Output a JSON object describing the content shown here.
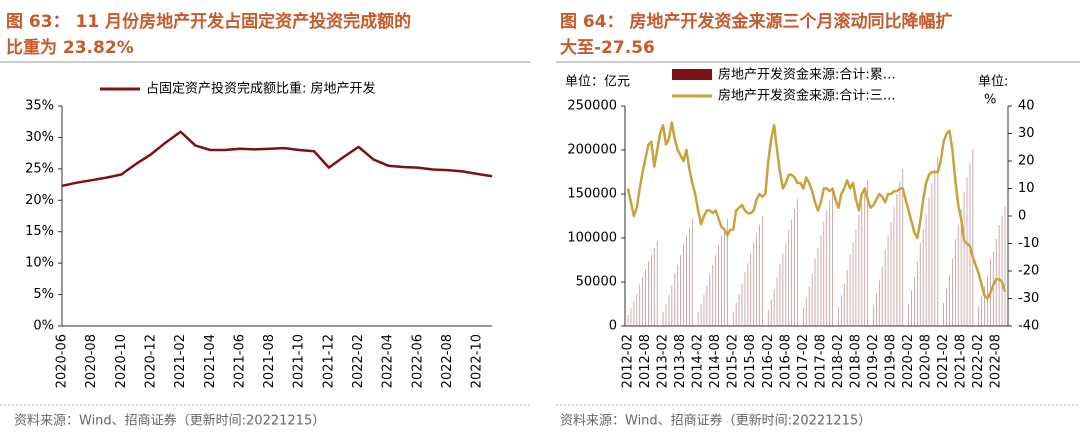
{
  "chart_data": [
    {
      "type": "line",
      "title": [
        "图 63：  11 月份房地产开发占固定资产投资完成额的",
        "比重为 23.82%"
      ],
      "source": "资料来源：Wind、招商证券（更新时间:20221215）",
      "categories": [
        "2020-06",
        null,
        "2020-08",
        null,
        "2020-10",
        null,
        "2020-12",
        null,
        "2021-02",
        null,
        "2021-04",
        null,
        "2021-06",
        null,
        "2021-08",
        null,
        "2021-10",
        null,
        "2021-12",
        null,
        "2022-02",
        null,
        "2022-04",
        null,
        "2022-06",
        null,
        "2022-08",
        null,
        "2022-10",
        null
      ],
      "series": [
        {
          "name": "占固定资产投资完成额比重: 房地产开发",
          "color": "#7b1316",
          "values": [
            22.3,
            22.8,
            23.2,
            23.6,
            24.1,
            25.8,
            27.3,
            29.2,
            30.9,
            28.7,
            28.0,
            28.0,
            28.2,
            28.1,
            28.2,
            28.3,
            28.0,
            27.8,
            25.2,
            26.9,
            28.5,
            26.5,
            25.5,
            25.3,
            25.2,
            24.9,
            24.8,
            24.6,
            24.2,
            23.82
          ]
        }
      ],
      "ylim": [
        0,
        35
      ],
      "yticks": [
        {
          "value": 0,
          "label": "0%"
        },
        {
          "value": 5,
          "label": "5%"
        },
        {
          "value": 10,
          "label": "10%"
        },
        {
          "value": 15,
          "label": "15%"
        },
        {
          "value": 20,
          "label": "20%"
        },
        {
          "value": 25,
          "label": "25%"
        },
        {
          "value": 30,
          "label": "30%"
        },
        {
          "value": 35,
          "label": "35%"
        }
      ],
      "legend": "top"
    },
    {
      "type": "combo",
      "title": [
        "图 64：  房地产开发资金来源三个月滚动同比降幅扩",
        "大至-27.56"
      ],
      "source": "资料来源：Wind、招商证券（更新时间:20221215）",
      "y_unit": "单位：亿元",
      "y2_unit": [
        "单位:",
        "%"
      ],
      "categories": [
        "2012-02",
        null,
        null,
        null,
        null,
        null,
        "2012-08",
        null,
        null,
        null,
        null,
        null,
        "2013-02",
        null,
        null,
        null,
        null,
        null,
        "2013-08",
        null,
        null,
        null,
        null,
        null,
        "2014-02",
        null,
        null,
        null,
        null,
        null,
        "2014-08",
        null,
        null,
        null,
        null,
        null,
        "2015-02",
        null,
        null,
        null,
        null,
        null,
        "2015-08",
        null,
        null,
        null,
        null,
        null,
        "2016-02",
        null,
        null,
        null,
        null,
        null,
        "2016-08",
        null,
        null,
        null,
        null,
        null,
        "2017-02",
        null,
        null,
        null,
        null,
        null,
        "2017-08",
        null,
        null,
        null,
        null,
        null,
        "2018-02",
        null,
        null,
        null,
        null,
        null,
        "2018-08",
        null,
        null,
        null,
        null,
        null,
        "2019-02",
        null,
        null,
        null,
        null,
        null,
        "2019-08",
        null,
        null,
        null,
        null,
        null,
        "2020-02",
        null,
        null,
        null,
        null,
        null,
        "2020-08",
        null,
        null,
        null,
        null,
        null,
        "2021-02",
        null,
        null,
        null,
        null,
        null,
        "2021-08",
        null,
        null,
        null,
        null,
        null,
        "2022-02",
        null,
        null,
        null,
        null,
        null,
        "2022-08",
        null,
        null,
        null
      ],
      "series": [
        {
          "name": "房地产开发资金来源:合计:累…",
          "type": "bar",
          "color": "#7b1316",
          "values": [
            12500,
            20300,
            28000,
            36700,
            47300,
            55000,
            63700,
            73300,
            81100,
            88800,
            96500,
            null,
            15900,
            25600,
            35400,
            46400,
            59800,
            69600,
            80600,
            92800,
            102600,
            112300,
            122100,
            null,
            15800,
            25600,
            35400,
            46300,
            59700,
            69500,
            80500,
            92600,
            102400,
            112100,
            121900,
            null,
            16300,
            26300,
            36300,
            47600,
            61300,
            71400,
            82600,
            95200,
            105200,
            115200,
            125200,
            null,
            18700,
            30300,
            41800,
            54800,
            70700,
            82200,
            95200,
            109600,
            121100,
            132700,
            144200,
            null,
            20300,
            32800,
            45300,
            59300,
            76500,
            89000,
            103000,
            118600,
            131100,
            143600,
            156100,
            null,
            21600,
            34900,
            48300,
            63200,
            81500,
            94800,
            109800,
            126500,
            139800,
            153100,
            166400,
            null,
            23200,
            37500,
            51800,
            67900,
            87500,
            101800,
            117900,
            135700,
            150000,
            164300,
            178600,
            null,
            25100,
            40600,
            56000,
            73400,
            94600,
            110100,
            127400,
            146800,
            162200,
            177700,
            193100,
            null,
            26100,
            42200,
            58300,
            76400,
            98500,
            114600,
            132700,
            152800,
            168900,
            185000,
            201100,
            null,
            22500,
            34700,
            45000,
            56900,
            76200,
            84600,
            98800,
            114800,
            124500,
            136000
          ]
        },
        {
          "name": "房地产开发资金来源:合计:三…",
          "type": "line",
          "axis": "y2",
          "color": "#c9a23c",
          "values": [
            10,
            5,
            0,
            3,
            10,
            16,
            21,
            26,
            27,
            18,
            24,
            30,
            33,
            26,
            28,
            34,
            28,
            24,
            22,
            20,
            24,
            17,
            12,
            8,
            2,
            -3,
            0,
            2,
            2,
            1,
            2,
            -1,
            -4,
            -5,
            -7,
            -5,
            -5,
            2,
            3,
            4,
            2,
            1,
            1,
            2,
            6,
            8,
            7,
            8,
            20,
            28,
            33,
            24,
            16,
            10,
            12,
            15,
            15,
            14,
            12,
            12,
            10,
            14,
            12,
            9,
            5,
            2,
            5,
            10,
            10,
            9,
            10,
            6,
            3,
            8,
            10,
            13,
            10,
            12,
            6,
            2,
            8,
            10,
            6,
            3,
            4,
            6,
            8,
            7,
            5,
            8,
            8,
            9,
            9,
            10,
            10,
            6,
            2,
            -2,
            -6,
            -8,
            -2,
            6,
            12,
            15,
            16,
            16,
            16,
            20,
            27,
            30,
            31,
            24,
            13,
            4,
            -1,
            -9,
            -10,
            -11,
            -15,
            -18,
            -21,
            -25,
            -29,
            -30,
            -28,
            -25,
            -23,
            -23,
            -24,
            -27.56
          ]
        }
      ],
      "ylim": [
        0,
        250000
      ],
      "yticks": [
        0,
        50000,
        100000,
        150000,
        200000,
        250000
      ],
      "y2lim": [
        -40,
        40
      ],
      "y2ticks": [
        -40,
        -30,
        -20,
        -10,
        0,
        10,
        20,
        30,
        40
      ],
      "y2_negative_color": "#e00000",
      "legend": "top"
    }
  ]
}
